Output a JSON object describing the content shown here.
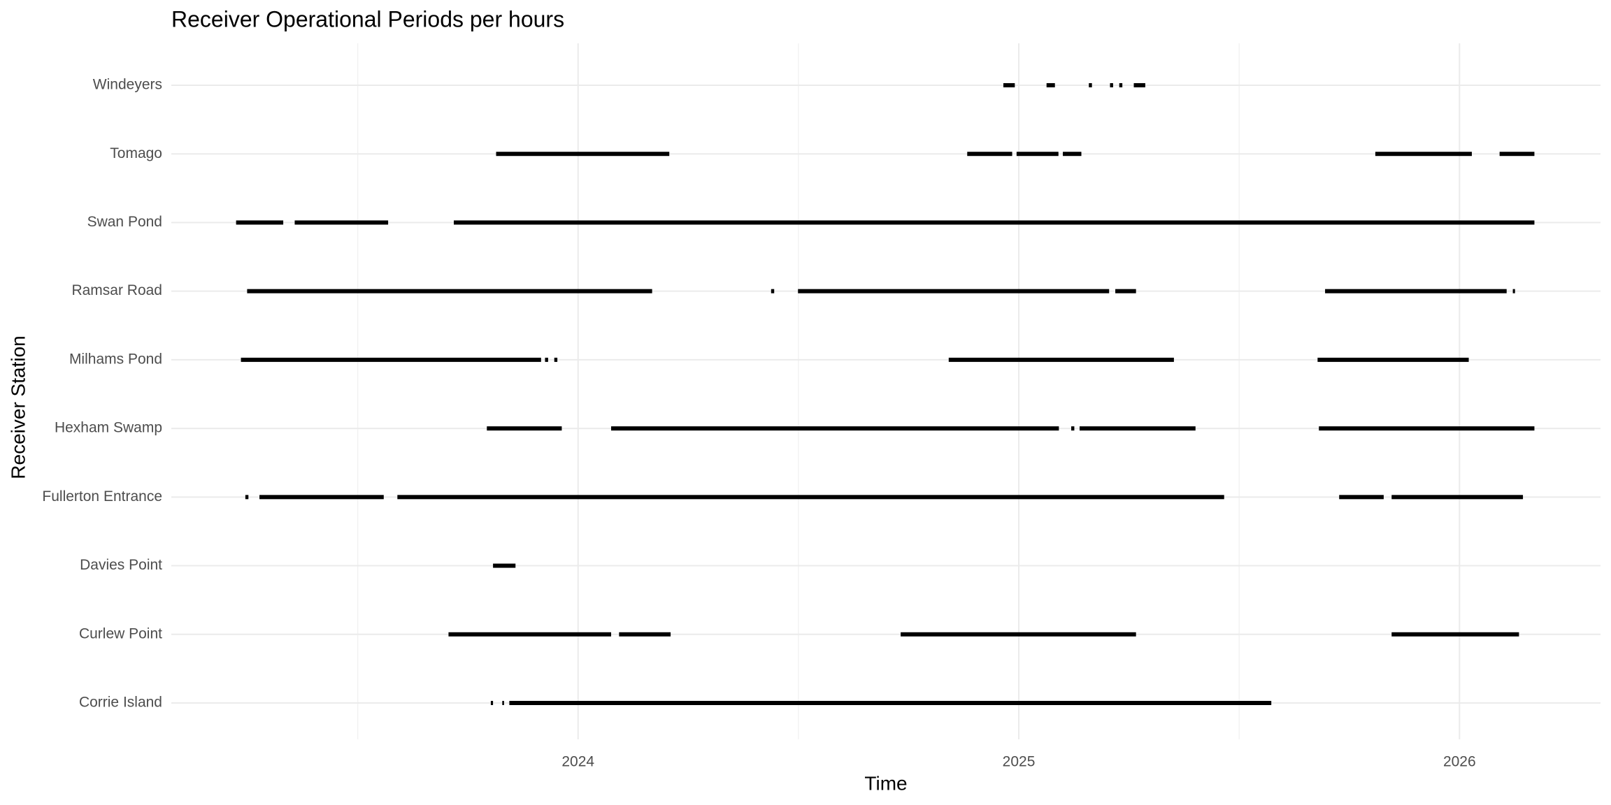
{
  "chart_data": {
    "type": "timeline",
    "title": "Receiver Operational Periods per hours",
    "x_label": "Time",
    "y_label": "Receiver Station",
    "color": "#000000",
    "grid": true,
    "xlim": [
      2023.077,
      2026.32
    ],
    "xticks": [
      2024,
      2025,
      2026
    ],
    "minor_xgrid": [
      2023.5,
      2024.5,
      2025.5
    ],
    "series": [
      {
        "name": "Corrie Island",
        "values": [
          [
            2023.802,
            2023.807
          ],
          [
            2023.828,
            2023.832
          ],
          [
            2023.844,
            2025.573
          ]
        ]
      },
      {
        "name": "Curlew Point",
        "values": [
          [
            2023.706,
            2024.075
          ],
          [
            2024.093,
            2024.21
          ],
          [
            2024.732,
            2025.266
          ],
          [
            2025.846,
            2026.135
          ]
        ]
      },
      {
        "name": "Davies Point",
        "values": [
          [
            2023.807,
            2023.858
          ]
        ]
      },
      {
        "name": "Fullerton Entrance",
        "values": [
          [
            2023.245,
            2023.252
          ],
          [
            2023.277,
            2023.559
          ],
          [
            2023.59,
            2025.466
          ],
          [
            2025.727,
            2025.828
          ],
          [
            2025.846,
            2026.144
          ]
        ]
      },
      {
        "name": "Hexham Swamp",
        "values": [
          [
            2023.793,
            2023.963
          ],
          [
            2024.075,
            2025.091
          ],
          [
            2025.119,
            2025.126
          ],
          [
            2025.138,
            2025.401
          ],
          [
            2025.681,
            2026.17
          ]
        ]
      },
      {
        "name": "Milhams Pond",
        "values": [
          [
            2023.235,
            2023.916
          ],
          [
            2023.925,
            2023.932
          ],
          [
            2023.946,
            2023.953
          ],
          [
            2024.841,
            2025.352
          ],
          [
            2025.678,
            2026.021
          ]
        ]
      },
      {
        "name": "Ramsar Road",
        "values": [
          [
            2023.249,
            2024.168
          ],
          [
            2024.438,
            2024.445
          ],
          [
            2024.499,
            2025.205
          ],
          [
            2025.219,
            2025.266
          ],
          [
            2025.695,
            2026.107
          ],
          [
            2026.121,
            2026.126
          ]
        ]
      },
      {
        "name": "Swan Pond",
        "values": [
          [
            2023.224,
            2023.331
          ],
          [
            2023.357,
            2023.569
          ],
          [
            2023.718,
            2026.17
          ]
        ]
      },
      {
        "name": "Tomago",
        "values": [
          [
            2023.814,
            2024.207
          ],
          [
            2024.883,
            2024.985
          ],
          [
            2024.995,
            2025.09
          ],
          [
            2025.1,
            2025.142
          ],
          [
            2025.809,
            2026.028
          ],
          [
            2026.091,
            2026.17
          ]
        ]
      },
      {
        "name": "Windeyers",
        "values": [
          [
            2024.965,
            2024.991
          ],
          [
            2025.063,
            2025.082
          ],
          [
            2025.159,
            2025.166
          ],
          [
            2025.207,
            2025.214
          ],
          [
            2025.228,
            2025.235
          ],
          [
            2025.261,
            2025.287
          ]
        ]
      }
    ]
  }
}
